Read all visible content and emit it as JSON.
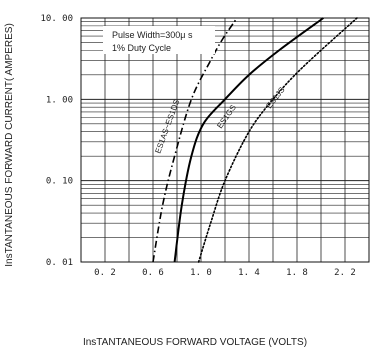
{
  "chart_data": {
    "type": "line",
    "xlabel": "InsTANTANEOUS FORWARD VOLTAGE (VOLTS)",
    "ylabel": "InsTANTANEOUS FORWARD CURRENT( AMPERES)",
    "xlim": [
      0.0,
      2.4
    ],
    "ylim": [
      0.01,
      10.0
    ],
    "y_scale": "log",
    "grid": true,
    "x_ticks": [
      {
        "value": 0.2,
        "label": "0. 2"
      },
      {
        "value": 0.6,
        "label": "0. 6"
      },
      {
        "value": 1.0,
        "label": "1. 0"
      },
      {
        "value": 1.4,
        "label": "1. 4"
      },
      {
        "value": 1.8,
        "label": "1. 8"
      },
      {
        "value": 2.2,
        "label": "2. 2"
      }
    ],
    "y_ticks": [
      {
        "value": 0.01,
        "label": "0. 01"
      },
      {
        "value": 0.1,
        "label": "0. 10"
      },
      {
        "value": 1.0,
        "label": "1. 00"
      },
      {
        "value": 10.0,
        "label": "10. 00"
      }
    ],
    "annotations": [
      "Pulse Width=300μ s",
      "1% Duty Cycle"
    ],
    "series": [
      {
        "name": "ES1AS~ES1DS",
        "style": "dashdot",
        "x": [
          0.6,
          0.68,
          0.78,
          0.92,
          1.08,
          1.18,
          1.3
        ],
        "y": [
          0.01,
          0.05,
          0.2,
          1.0,
          3.0,
          5.5,
          10.0
        ]
      },
      {
        "name": "ES1GS",
        "style": "solid",
        "x": [
          0.78,
          0.84,
          0.92,
          1.02,
          1.2,
          1.4,
          1.65,
          2.02
        ],
        "y": [
          0.01,
          0.05,
          0.2,
          0.5,
          1.0,
          2.0,
          4.0,
          10.0
        ]
      },
      {
        "name": "ES1JS",
        "style": "dotted",
        "x": [
          0.98,
          1.08,
          1.2,
          1.4,
          1.6,
          1.85,
          2.3
        ],
        "y": [
          0.01,
          0.03,
          0.1,
          0.4,
          1.0,
          2.5,
          10.0
        ]
      }
    ]
  }
}
